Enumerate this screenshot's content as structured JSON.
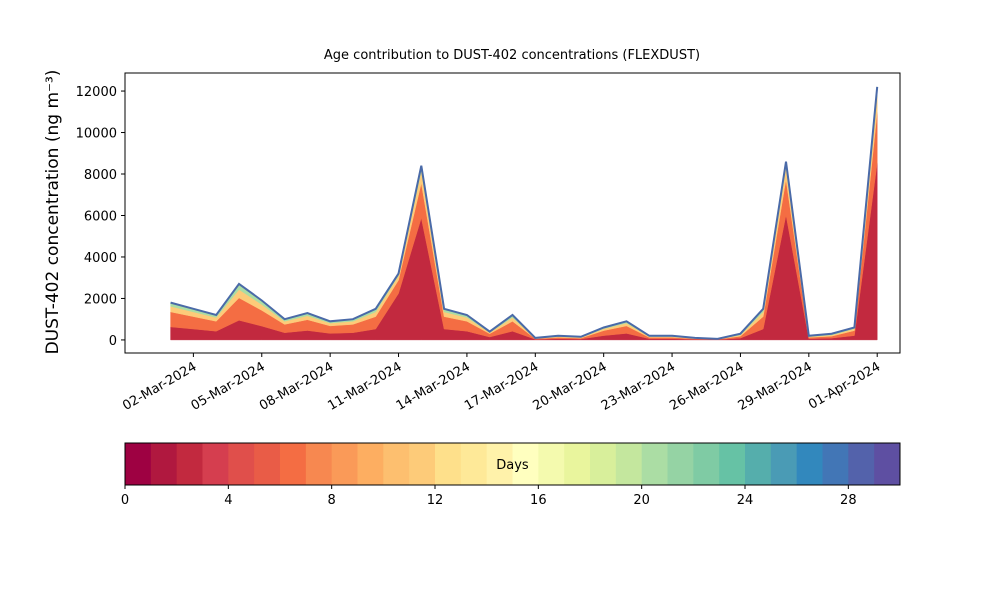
{
  "chart_data": {
    "type": "stacked_area",
    "title": "Age contribution to DUST-402 concentrations (FLEXDUST)",
    "ylabel": "DUST-402 concentration (ng m⁻³)",
    "x": [
      "2024-03-01",
      "2024-03-02",
      "2024-03-03",
      "2024-03-04",
      "2024-03-05",
      "2024-03-06",
      "2024-03-07",
      "2024-03-08",
      "2024-03-09",
      "2024-03-10",
      "2024-03-11",
      "2024-03-12",
      "2024-03-13",
      "2024-03-14",
      "2024-03-15",
      "2024-03-16",
      "2024-03-17",
      "2024-03-18",
      "2024-03-19",
      "2024-03-20",
      "2024-03-21",
      "2024-03-22",
      "2024-03-23",
      "2024-03-24",
      "2024-03-25",
      "2024-03-26",
      "2024-03-27",
      "2024-03-28",
      "2024-03-29",
      "2024-03-30",
      "2024-03-31",
      "2024-04-01"
    ],
    "series": [
      {
        "color": "#c2293f",
        "values": [
          630,
          525,
          420,
          945,
          665,
          350,
          455,
          315,
          350,
          525,
          2240,
          5880,
          525,
          420,
          140,
          420,
          30,
          60,
          45,
          210,
          315,
          60,
          60,
          30,
          15,
          90,
          525,
          6020,
          60,
          90,
          210,
          8540
        ]
      },
      {
        "color": "#f46d43",
        "values": [
          720,
          600,
          480,
          1080,
          760,
          400,
          520,
          360,
          400,
          600,
          640,
          1680,
          600,
          480,
          160,
          480,
          30,
          60,
          45,
          240,
          360,
          60,
          60,
          30,
          15,
          90,
          600,
          1720,
          60,
          90,
          240,
          2440
        ]
      },
      {
        "color": "#fdcb79",
        "values": [
          270,
          225,
          180,
          405,
          285,
          150,
          195,
          135,
          150,
          225,
          224,
          588,
          225,
          180,
          60,
          180,
          20,
          40,
          30,
          90,
          135,
          40,
          40,
          20,
          10,
          60,
          225,
          602,
          40,
          60,
          90,
          854
        ]
      },
      {
        "color": "#abdda4",
        "values": [
          180,
          150,
          120,
          270,
          190,
          100,
          130,
          90,
          100,
          150,
          96,
          252,
          150,
          120,
          40,
          120,
          20,
          40,
          30,
          60,
          90,
          40,
          40,
          20,
          10,
          60,
          150,
          258,
          40,
          60,
          60,
          366
        ]
      }
    ],
    "outline_color": "#4a6aa8",
    "xlim": [
      "2024-02-28",
      "2024-04-02"
    ],
    "xticks": [
      {
        "value": "2024-03-02",
        "label": "02-Mar-2024"
      },
      {
        "value": "2024-03-05",
        "label": "05-Mar-2024"
      },
      {
        "value": "2024-03-08",
        "label": "08-Mar-2024"
      },
      {
        "value": "2024-03-11",
        "label": "11-Mar-2024"
      },
      {
        "value": "2024-03-14",
        "label": "14-Mar-2024"
      },
      {
        "value": "2024-03-17",
        "label": "17-Mar-2024"
      },
      {
        "value": "2024-03-20",
        "label": "20-Mar-2024"
      },
      {
        "value": "2024-03-23",
        "label": "23-Mar-2024"
      },
      {
        "value": "2024-03-26",
        "label": "26-Mar-2024"
      },
      {
        "value": "2024-03-29",
        "label": "29-Mar-2024"
      },
      {
        "value": "2024-04-01",
        "label": "01-Apr-2024"
      }
    ],
    "ylim": [
      -630,
      12870
    ],
    "yticks": [
      0,
      2000,
      4000,
      6000,
      8000,
      10000,
      12000
    ],
    "colorbar": {
      "label": "Days",
      "lim": [
        0,
        30
      ],
      "ticks": [
        0,
        4,
        8,
        12,
        16,
        20,
        24,
        28
      ],
      "colors": [
        "#9e0142",
        "#b0183f",
        "#c2293f",
        "#d53e4f",
        "#e04f4b",
        "#e95c47",
        "#f46d43",
        "#f78850",
        "#fa9a58",
        "#fdae61",
        "#fdbf6f",
        "#fdcb79",
        "#fee08b",
        "#fee998",
        "#fff2aa",
        "#ffffbf",
        "#f4faae",
        "#e9f59d",
        "#d8ef9b",
        "#c4e79e",
        "#abdda4",
        "#95d3a4",
        "#7fcba4",
        "#66c2a5",
        "#55aeac",
        "#4a9bb5",
        "#3288bd",
        "#4276b6",
        "#5362ab",
        "#5e4fa2"
      ]
    }
  }
}
